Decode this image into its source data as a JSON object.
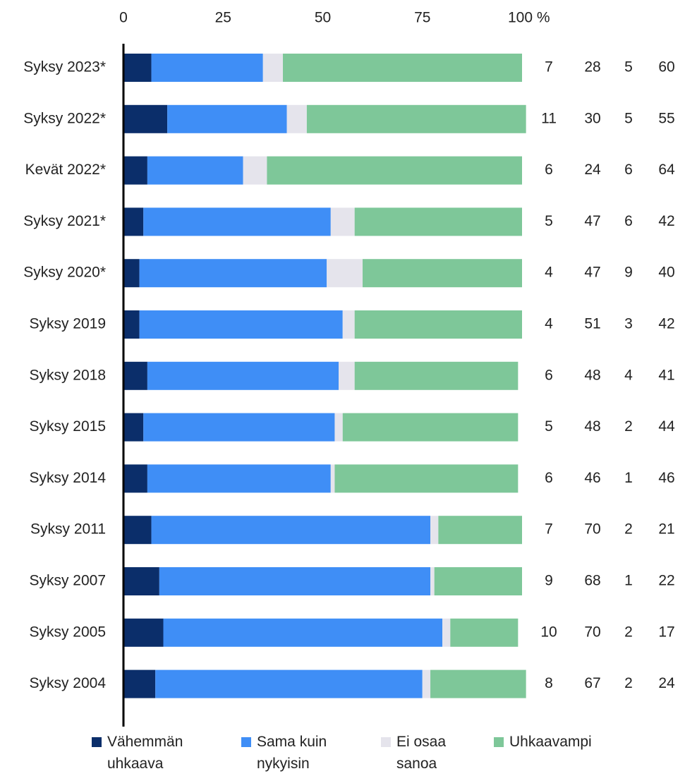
{
  "chart_data": {
    "type": "bar",
    "orientation": "horizontal",
    "stacked": true,
    "categories": [
      "Syksy 2023*",
      "Syksy 2022*",
      "Kevät 2022*",
      "Syksy 2021*",
      "Syksy 2020*",
      "Syksy 2019",
      "Syksy 2018",
      "Syksy 2015",
      "Syksy 2014",
      "Syksy 2011",
      "Syksy 2007",
      "Syksy 2005",
      "Syksy 2004"
    ],
    "series": [
      {
        "name": "Vähemmän uhkaava",
        "color": "#0b2e6a",
        "values": [
          7,
          11,
          6,
          5,
          4,
          4,
          6,
          5,
          6,
          7,
          9,
          10,
          8
        ]
      },
      {
        "name": "Sama kuin nykyisin",
        "color": "#3f8ef6",
        "values": [
          28,
          30,
          24,
          47,
          47,
          51,
          48,
          48,
          46,
          70,
          68,
          70,
          67
        ]
      },
      {
        "name": "Ei osaa sanoa",
        "color": "#e5e4ec",
        "values": [
          5,
          5,
          6,
          6,
          9,
          3,
          4,
          2,
          1,
          2,
          1,
          2,
          2
        ]
      },
      {
        "name": "Uhkaavampi",
        "color": "#7ec799",
        "values": [
          60,
          55,
          64,
          42,
          40,
          42,
          41,
          44,
          46,
          21,
          22,
          17,
          24
        ]
      }
    ],
    "xlim": [
      0,
      100
    ],
    "xticks": [
      0,
      25,
      50,
      75,
      {
        "value": 100,
        "label": "100 %"
      }
    ],
    "grid": false
  }
}
